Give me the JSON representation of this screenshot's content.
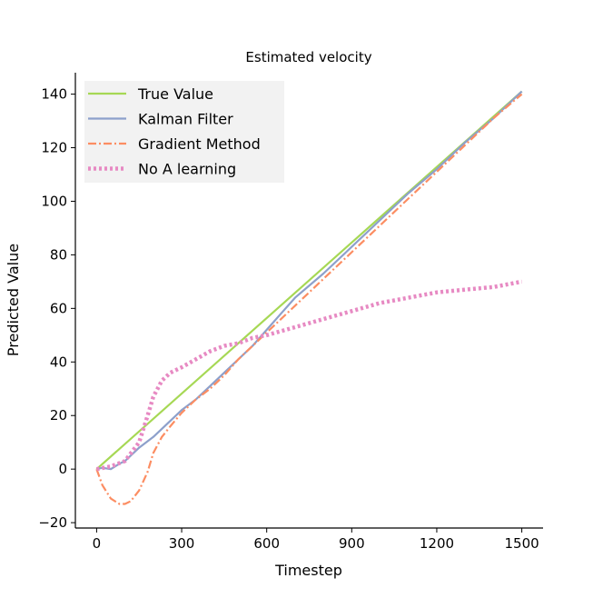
{
  "chart_data": {
    "type": "line",
    "title": "Estimated velocity",
    "xlabel": "Timestep",
    "ylabel": "Predicted Value",
    "xlim": [
      -75,
      1575
    ],
    "ylim": [
      -22,
      148
    ],
    "xticks": [
      0,
      300,
      600,
      900,
      1200,
      1500
    ],
    "xtick_labels": [
      "0",
      "300",
      "600",
      "900",
      "1200",
      "1500"
    ],
    "yticks": [
      -20,
      0,
      20,
      40,
      60,
      80,
      100,
      120,
      140
    ],
    "ytick_labels": [
      "−20",
      "0",
      "20",
      "40",
      "60",
      "80",
      "100",
      "120",
      "140"
    ],
    "grid": false,
    "legend_position": "top-left",
    "series": [
      {
        "name": "True Value",
        "color": "#a6d854",
        "style": "solid",
        "points": [
          [
            0,
            0
          ],
          [
            1500,
            141
          ]
        ]
      },
      {
        "name": "Kalman Filter",
        "color": "#8da0cb",
        "style": "solid",
        "points": [
          [
            0,
            0
          ],
          [
            20,
            0.5
          ],
          [
            50,
            0
          ],
          [
            80,
            2
          ],
          [
            100,
            3
          ],
          [
            150,
            8
          ],
          [
            200,
            12
          ],
          [
            250,
            17
          ],
          [
            300,
            22
          ],
          [
            350,
            26
          ],
          [
            400,
            31
          ],
          [
            450,
            36
          ],
          [
            500,
            41
          ],
          [
            550,
            46
          ],
          [
            600,
            52
          ],
          [
            650,
            58
          ],
          [
            700,
            64
          ],
          [
            800,
            73
          ],
          [
            900,
            83
          ],
          [
            1000,
            93
          ],
          [
            1100,
            103
          ],
          [
            1200,
            112
          ],
          [
            1300,
            122
          ],
          [
            1400,
            131
          ],
          [
            1500,
            141
          ]
        ]
      },
      {
        "name": "Gradient Method",
        "color": "#fc8d62",
        "style": "dashdot",
        "points": [
          [
            0,
            0
          ],
          [
            20,
            -6
          ],
          [
            50,
            -11
          ],
          [
            80,
            -13
          ],
          [
            100,
            -13
          ],
          [
            120,
            -12
          ],
          [
            150,
            -8
          ],
          [
            180,
            -1
          ],
          [
            200,
            6
          ],
          [
            230,
            12
          ],
          [
            260,
            16
          ],
          [
            300,
            21
          ],
          [
            350,
            26
          ],
          [
            400,
            30
          ],
          [
            450,
            35
          ],
          [
            500,
            41
          ],
          [
            550,
            46
          ],
          [
            600,
            51
          ],
          [
            700,
            61
          ],
          [
            800,
            71
          ],
          [
            900,
            81
          ],
          [
            1000,
            91
          ],
          [
            1100,
            101
          ],
          [
            1200,
            111
          ],
          [
            1300,
            121
          ],
          [
            1400,
            131
          ],
          [
            1500,
            140
          ]
        ]
      },
      {
        "name": "No A learning",
        "color": "#e78ac3",
        "style": "dotted",
        "points": [
          [
            0,
            0
          ],
          [
            50,
            1
          ],
          [
            100,
            3
          ],
          [
            150,
            10
          ],
          [
            180,
            20
          ],
          [
            200,
            27
          ],
          [
            230,
            33
          ],
          [
            260,
            36
          ],
          [
            300,
            38
          ],
          [
            350,
            41
          ],
          [
            400,
            44
          ],
          [
            450,
            46
          ],
          [
            500,
            47
          ],
          [
            550,
            49
          ],
          [
            600,
            50
          ],
          [
            700,
            53
          ],
          [
            800,
            56
          ],
          [
            900,
            59
          ],
          [
            1000,
            62
          ],
          [
            1100,
            64
          ],
          [
            1200,
            66
          ],
          [
            1300,
            67
          ],
          [
            1400,
            68
          ],
          [
            1500,
            70
          ]
        ]
      }
    ]
  }
}
